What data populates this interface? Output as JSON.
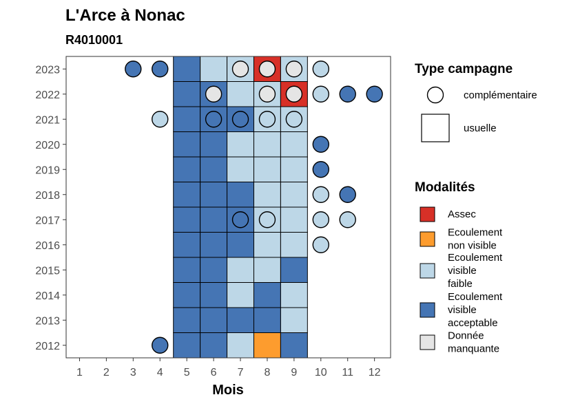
{
  "chart_data": {
    "type": "heatmap",
    "title": "L'Arce à Nonac",
    "subtitle": "R4010001",
    "xlabel": "Mois",
    "ylabel": "",
    "x_ticks": [
      "1",
      "2",
      "3",
      "4",
      "5",
      "6",
      "7",
      "8",
      "9",
      "10",
      "11",
      "12"
    ],
    "y_ticks": [
      "2012",
      "2013",
      "2014",
      "2015",
      "2016",
      "2017",
      "2018",
      "2019",
      "2020",
      "2021",
      "2022",
      "2023"
    ],
    "grid": false,
    "legend_placement": "right",
    "colors": {
      "assec": "#d73027",
      "ecoulement_non_visible": "#fd9c2e",
      "ecoulement_visible_faible": "#bdd7e7",
      "ecoulement_visible_acceptable": "#4575b4",
      "donnee_manquante": "#e5e5e5"
    },
    "legends": {
      "type_campagne": {
        "title": "Type campagne",
        "items": [
          {
            "key": "complementaire",
            "label": "complémentaire",
            "shape": "circle"
          },
          {
            "key": "usuelle",
            "label": "usuelle",
            "shape": "square"
          }
        ]
      },
      "modalites": {
        "title": "Modalités",
        "items": [
          {
            "key": "assec",
            "lines": [
              "Assec"
            ],
            "color": "#d73027"
          },
          {
            "key": "ecoulement_non_visible",
            "lines": [
              "Ecoulement",
              "non visible"
            ],
            "color": "#fd9c2e"
          },
          {
            "key": "ecoulement_visible_faible",
            "lines": [
              "Ecoulement",
              "visible",
              "faible"
            ],
            "color": "#bdd7e7"
          },
          {
            "key": "ecoulement_visible_acceptable",
            "lines": [
              "Ecoulement",
              "visible",
              "acceptable"
            ],
            "color": "#4575b4"
          },
          {
            "key": "donnee_manquante",
            "lines": [
              "Donnée",
              "manquante"
            ],
            "color": "#e5e5e5"
          }
        ]
      }
    },
    "observations": [
      {
        "year": 2012,
        "month": 4,
        "campagne": "complementaire",
        "modalite": "ecoulement_visible_acceptable"
      },
      {
        "year": 2012,
        "month": 5,
        "campagne": "usuelle",
        "modalite": "ecoulement_visible_acceptable"
      },
      {
        "year": 2012,
        "month": 6,
        "campagne": "usuelle",
        "modalite": "ecoulement_visible_acceptable"
      },
      {
        "year": 2012,
        "month": 7,
        "campagne": "usuelle",
        "modalite": "ecoulement_visible_faible"
      },
      {
        "year": 2012,
        "month": 8,
        "campagne": "usuelle",
        "modalite": "ecoulement_non_visible"
      },
      {
        "year": 2012,
        "month": 9,
        "campagne": "usuelle",
        "modalite": "ecoulement_visible_acceptable"
      },
      {
        "year": 2013,
        "month": 5,
        "campagne": "usuelle",
        "modalite": "ecoulement_visible_acceptable"
      },
      {
        "year": 2013,
        "month": 6,
        "campagne": "usuelle",
        "modalite": "ecoulement_visible_acceptable"
      },
      {
        "year": 2013,
        "month": 7,
        "campagne": "usuelle",
        "modalite": "ecoulement_visible_acceptable"
      },
      {
        "year": 2013,
        "month": 8,
        "campagne": "usuelle",
        "modalite": "ecoulement_visible_acceptable"
      },
      {
        "year": 2013,
        "month": 9,
        "campagne": "usuelle",
        "modalite": "ecoulement_visible_faible"
      },
      {
        "year": 2014,
        "month": 5,
        "campagne": "usuelle",
        "modalite": "ecoulement_visible_acceptable"
      },
      {
        "year": 2014,
        "month": 6,
        "campagne": "usuelle",
        "modalite": "ecoulement_visible_acceptable"
      },
      {
        "year": 2014,
        "month": 7,
        "campagne": "usuelle",
        "modalite": "ecoulement_visible_faible"
      },
      {
        "year": 2014,
        "month": 8,
        "campagne": "usuelle",
        "modalite": "ecoulement_visible_acceptable"
      },
      {
        "year": 2014,
        "month": 9,
        "campagne": "usuelle",
        "modalite": "ecoulement_visible_faible"
      },
      {
        "year": 2015,
        "month": 5,
        "campagne": "usuelle",
        "modalite": "ecoulement_visible_acceptable"
      },
      {
        "year": 2015,
        "month": 6,
        "campagne": "usuelle",
        "modalite": "ecoulement_visible_acceptable"
      },
      {
        "year": 2015,
        "month": 7,
        "campagne": "usuelle",
        "modalite": "ecoulement_visible_faible"
      },
      {
        "year": 2015,
        "month": 8,
        "campagne": "usuelle",
        "modalite": "ecoulement_visible_faible"
      },
      {
        "year": 2015,
        "month": 9,
        "campagne": "usuelle",
        "modalite": "ecoulement_visible_acceptable"
      },
      {
        "year": 2016,
        "month": 5,
        "campagne": "usuelle",
        "modalite": "ecoulement_visible_acceptable"
      },
      {
        "year": 2016,
        "month": 6,
        "campagne": "usuelle",
        "modalite": "ecoulement_visible_acceptable"
      },
      {
        "year": 2016,
        "month": 7,
        "campagne": "usuelle",
        "modalite": "ecoulement_visible_acceptable"
      },
      {
        "year": 2016,
        "month": 8,
        "campagne": "usuelle",
        "modalite": "ecoulement_visible_faible"
      },
      {
        "year": 2016,
        "month": 9,
        "campagne": "usuelle",
        "modalite": "ecoulement_visible_faible"
      },
      {
        "year": 2016,
        "month": 10,
        "campagne": "complementaire",
        "modalite": "ecoulement_visible_faible"
      },
      {
        "year": 2017,
        "month": 5,
        "campagne": "usuelle",
        "modalite": "ecoulement_visible_acceptable"
      },
      {
        "year": 2017,
        "month": 6,
        "campagne": "usuelle",
        "modalite": "ecoulement_visible_acceptable"
      },
      {
        "year": 2017,
        "month": 7,
        "campagne": "usuelle",
        "modalite": "ecoulement_visible_acceptable"
      },
      {
        "year": 2017,
        "month": 7,
        "campagne": "complementaire",
        "modalite": "ecoulement_visible_acceptable"
      },
      {
        "year": 2017,
        "month": 8,
        "campagne": "usuelle",
        "modalite": "ecoulement_visible_faible"
      },
      {
        "year": 2017,
        "month": 8,
        "campagne": "complementaire",
        "modalite": "ecoulement_visible_faible"
      },
      {
        "year": 2017,
        "month": 9,
        "campagne": "usuelle",
        "modalite": "ecoulement_visible_faible"
      },
      {
        "year": 2017,
        "month": 10,
        "campagne": "complementaire",
        "modalite": "ecoulement_visible_faible"
      },
      {
        "year": 2017,
        "month": 11,
        "campagne": "complementaire",
        "modalite": "ecoulement_visible_faible"
      },
      {
        "year": 2018,
        "month": 5,
        "campagne": "usuelle",
        "modalite": "ecoulement_visible_acceptable"
      },
      {
        "year": 2018,
        "month": 6,
        "campagne": "usuelle",
        "modalite": "ecoulement_visible_acceptable"
      },
      {
        "year": 2018,
        "month": 7,
        "campagne": "usuelle",
        "modalite": "ecoulement_visible_acceptable"
      },
      {
        "year": 2018,
        "month": 8,
        "campagne": "usuelle",
        "modalite": "ecoulement_visible_faible"
      },
      {
        "year": 2018,
        "month": 9,
        "campagne": "usuelle",
        "modalite": "ecoulement_visible_faible"
      },
      {
        "year": 2018,
        "month": 10,
        "campagne": "complementaire",
        "modalite": "ecoulement_visible_faible"
      },
      {
        "year": 2018,
        "month": 11,
        "campagne": "complementaire",
        "modalite": "ecoulement_visible_acceptable"
      },
      {
        "year": 2019,
        "month": 5,
        "campagne": "usuelle",
        "modalite": "ecoulement_visible_acceptable"
      },
      {
        "year": 2019,
        "month": 6,
        "campagne": "usuelle",
        "modalite": "ecoulement_visible_acceptable"
      },
      {
        "year": 2019,
        "month": 7,
        "campagne": "usuelle",
        "modalite": "ecoulement_visible_faible"
      },
      {
        "year": 2019,
        "month": 8,
        "campagne": "usuelle",
        "modalite": "ecoulement_visible_faible"
      },
      {
        "year": 2019,
        "month": 9,
        "campagne": "usuelle",
        "modalite": "ecoulement_visible_faible"
      },
      {
        "year": 2019,
        "month": 10,
        "campagne": "complementaire",
        "modalite": "ecoulement_visible_acceptable"
      },
      {
        "year": 2020,
        "month": 5,
        "campagne": "usuelle",
        "modalite": "ecoulement_visible_acceptable"
      },
      {
        "year": 2020,
        "month": 6,
        "campagne": "usuelle",
        "modalite": "ecoulement_visible_acceptable"
      },
      {
        "year": 2020,
        "month": 7,
        "campagne": "usuelle",
        "modalite": "ecoulement_visible_faible"
      },
      {
        "year": 2020,
        "month": 8,
        "campagne": "usuelle",
        "modalite": "ecoulement_visible_faible"
      },
      {
        "year": 2020,
        "month": 9,
        "campagne": "usuelle",
        "modalite": "ecoulement_visible_faible"
      },
      {
        "year": 2020,
        "month": 10,
        "campagne": "complementaire",
        "modalite": "ecoulement_visible_acceptable"
      },
      {
        "year": 2021,
        "month": 4,
        "campagne": "complementaire",
        "modalite": "ecoulement_visible_faible"
      },
      {
        "year": 2021,
        "month": 5,
        "campagne": "usuelle",
        "modalite": "ecoulement_visible_acceptable"
      },
      {
        "year": 2021,
        "month": 6,
        "campagne": "usuelle",
        "modalite": "ecoulement_visible_acceptable"
      },
      {
        "year": 2021,
        "month": 6,
        "campagne": "complementaire",
        "modalite": "ecoulement_visible_acceptable"
      },
      {
        "year": 2021,
        "month": 7,
        "campagne": "usuelle",
        "modalite": "ecoulement_visible_acceptable"
      },
      {
        "year": 2021,
        "month": 7,
        "campagne": "complementaire",
        "modalite": "ecoulement_visible_acceptable"
      },
      {
        "year": 2021,
        "month": 8,
        "campagne": "usuelle",
        "modalite": "ecoulement_visible_faible"
      },
      {
        "year": 2021,
        "month": 8,
        "campagne": "complementaire",
        "modalite": "ecoulement_visible_faible"
      },
      {
        "year": 2021,
        "month": 9,
        "campagne": "usuelle",
        "modalite": "ecoulement_visible_faible"
      },
      {
        "year": 2021,
        "month": 9,
        "campagne": "complementaire",
        "modalite": "ecoulement_visible_faible"
      },
      {
        "year": 2022,
        "month": 5,
        "campagne": "usuelle",
        "modalite": "ecoulement_visible_acceptable"
      },
      {
        "year": 2022,
        "month": 6,
        "campagne": "usuelle",
        "modalite": "ecoulement_visible_acceptable"
      },
      {
        "year": 2022,
        "month": 6,
        "campagne": "complementaire",
        "modalite": "donnee_manquante"
      },
      {
        "year": 2022,
        "month": 7,
        "campagne": "usuelle",
        "modalite": "ecoulement_visible_faible"
      },
      {
        "year": 2022,
        "month": 8,
        "campagne": "usuelle",
        "modalite": "ecoulement_visible_faible"
      },
      {
        "year": 2022,
        "month": 8,
        "campagne": "complementaire",
        "modalite": "donnee_manquante"
      },
      {
        "year": 2022,
        "month": 9,
        "campagne": "usuelle",
        "modalite": "assec"
      },
      {
        "year": 2022,
        "month": 9,
        "campagne": "complementaire",
        "modalite": "donnee_manquante"
      },
      {
        "year": 2022,
        "month": 10,
        "campagne": "complementaire",
        "modalite": "ecoulement_visible_faible"
      },
      {
        "year": 2022,
        "month": 11,
        "campagne": "complementaire",
        "modalite": "ecoulement_visible_acceptable"
      },
      {
        "year": 2022,
        "month": 12,
        "campagne": "complementaire",
        "modalite": "ecoulement_visible_acceptable"
      },
      {
        "year": 2023,
        "month": 3,
        "campagne": "complementaire",
        "modalite": "ecoulement_visible_acceptable"
      },
      {
        "year": 2023,
        "month": 4,
        "campagne": "complementaire",
        "modalite": "ecoulement_visible_acceptable"
      },
      {
        "year": 2023,
        "month": 5,
        "campagne": "usuelle",
        "modalite": "ecoulement_visible_acceptable"
      },
      {
        "year": 2023,
        "month": 6,
        "campagne": "usuelle",
        "modalite": "ecoulement_visible_faible"
      },
      {
        "year": 2023,
        "month": 7,
        "campagne": "usuelle",
        "modalite": "ecoulement_visible_faible"
      },
      {
        "year": 2023,
        "month": 7,
        "campagne": "complementaire",
        "modalite": "donnee_manquante"
      },
      {
        "year": 2023,
        "month": 8,
        "campagne": "usuelle",
        "modalite": "assec"
      },
      {
        "year": 2023,
        "month": 8,
        "campagne": "complementaire",
        "modalite": "donnee_manquante"
      },
      {
        "year": 2023,
        "month": 9,
        "campagne": "usuelle",
        "modalite": "ecoulement_visible_faible"
      },
      {
        "year": 2023,
        "month": 9,
        "campagne": "complementaire",
        "modalite": "donnee_manquante"
      },
      {
        "year": 2023,
        "month": 10,
        "campagne": "complementaire",
        "modalite": "ecoulement_visible_faible"
      }
    ]
  }
}
